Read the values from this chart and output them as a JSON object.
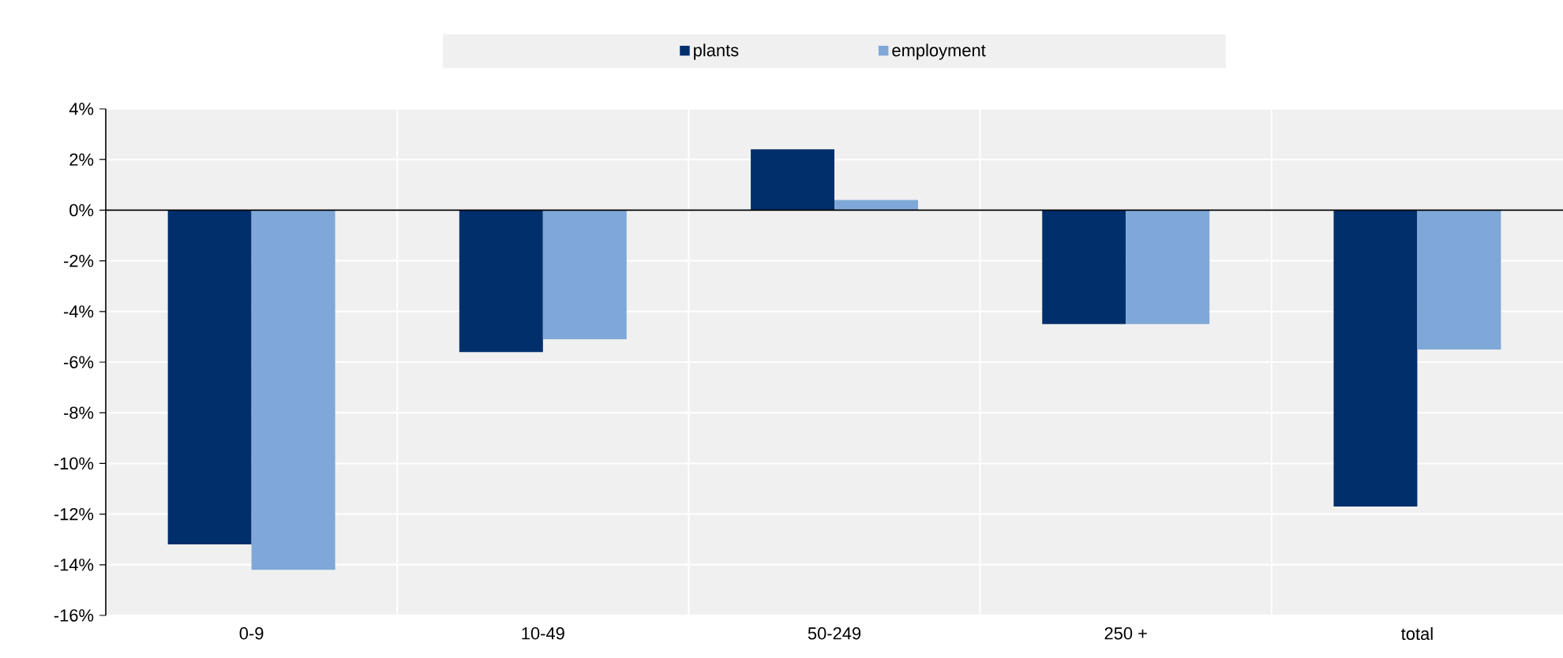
{
  "chart_data": {
    "type": "bar",
    "categories": [
      "0-9",
      "10-49",
      "50-249",
      "250 +",
      "total"
    ],
    "series": [
      {
        "name": "plants",
        "color": "#002f6c",
        "values": [
          -13.2,
          -5.6,
          2.4,
          -4.5,
          -11.7
        ]
      },
      {
        "name": "employment",
        "color": "#7fa8d9",
        "values": [
          -14.2,
          -5.1,
          0.4,
          -4.5,
          -5.5
        ]
      }
    ],
    "ylim": [
      -16,
      4
    ],
    "yticks": [
      {
        "value": -16,
        "label": "-16%"
      },
      {
        "value": -14,
        "label": "-14%"
      },
      {
        "value": -12,
        "label": "-12%"
      },
      {
        "value": -10,
        "label": "-10%"
      },
      {
        "value": -8,
        "label": "-8%"
      },
      {
        "value": -6,
        "label": "-6%"
      },
      {
        "value": -4,
        "label": "-4%"
      },
      {
        "value": -2,
        "label": "-2%"
      },
      {
        "value": 0,
        "label": "0%"
      },
      {
        "value": 2,
        "label": "2%"
      },
      {
        "value": 4,
        "label": "4%"
      }
    ],
    "grid": true,
    "legend": "top"
  }
}
